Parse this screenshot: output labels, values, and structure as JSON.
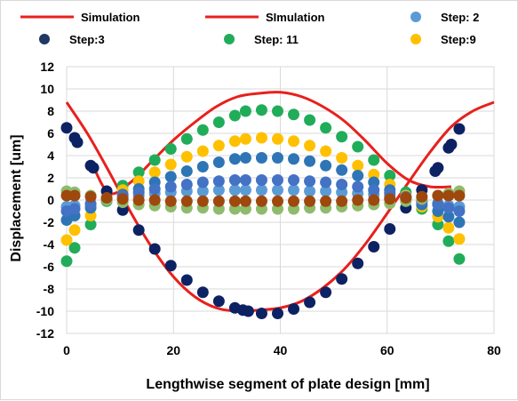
{
  "chart_data": {
    "type": "scatter",
    "title": "",
    "xlabel": "Lengthwise segment of plate design [mm]",
    "ylabel": "Displacement [um]",
    "xlim": [
      0,
      80
    ],
    "ylim": [
      -12,
      12
    ],
    "xticks": [
      "0",
      "20",
      "40",
      "60",
      "80"
    ],
    "yticks": [
      "-12",
      "-10",
      "-8",
      "-6",
      "-4",
      "-2",
      "0",
      "2",
      "4",
      "6",
      "8",
      "10",
      "12"
    ],
    "grid": true,
    "legend_position": "top",
    "legend": [
      {
        "label": "Simulation",
        "kind": "line",
        "color": "#e8201c"
      },
      {
        "label": "SImulation",
        "kind": "line",
        "color": "#e8201c"
      },
      {
        "label": "Step: 2",
        "kind": "marker",
        "color": "#5b9bd5"
      },
      {
        "label": "Step:3",
        "kind": "marker",
        "color": "#1f3864"
      },
      {
        "label": "Step: 11",
        "kind": "marker",
        "color": "#21ac5a"
      },
      {
        "label": "Step:9",
        "kind": "marker",
        "color": "#ffc000"
      }
    ],
    "series": [
      {
        "name": "Simulation",
        "kind": "line",
        "color": "#e8201c",
        "x": [
          0,
          4,
          8,
          12,
          16,
          20,
          24,
          28,
          32,
          36,
          40,
          44,
          48,
          52,
          56,
          60,
          64,
          68,
          72,
          76,
          80
        ],
        "y": [
          8.8,
          5.9,
          2.5,
          -1.1,
          -4.3,
          -6.9,
          -8.7,
          -9.7,
          -10.0,
          -9.9,
          -9.7,
          -9.1,
          -7.9,
          -6.2,
          -3.9,
          -1.2,
          1.6,
          4.3,
          6.6,
          8.0,
          8.8
        ]
      },
      {
        "name": "SImulation",
        "kind": "line",
        "color": "#e8201c",
        "x": [
          5,
          8,
          12,
          16,
          20,
          24,
          28,
          32,
          36,
          40,
          44,
          48,
          52,
          56,
          60,
          64,
          68,
          72
        ],
        "y": [
          3.0,
          0.6,
          1.6,
          3.5,
          5.4,
          7.0,
          8.4,
          9.3,
          9.6,
          9.7,
          9.3,
          8.4,
          7.1,
          5.3,
          3.3,
          1.8,
          1.2,
          1.2
        ]
      },
      {
        "name": "Step: 2",
        "kind": "marker",
        "color": "#5b9bd5",
        "x": [
          0,
          1.5,
          4.5,
          7.5,
          10.5,
          13.5,
          16.5,
          19.5,
          22.5,
          25.5,
          28.5,
          31.5,
          33.5,
          36.5,
          39.5,
          42.5,
          45.5,
          48.5,
          51.5,
          54.5,
          57.5,
          60.5,
          63.5,
          66.5,
          69.5,
          71.5,
          73.5
        ],
        "y": [
          -0.6,
          -0.5,
          -0.3,
          0.0,
          0.2,
          0.4,
          0.6,
          0.7,
          0.8,
          0.8,
          0.9,
          0.9,
          0.9,
          0.9,
          0.9,
          0.9,
          0.8,
          0.8,
          0.7,
          0.6,
          0.5,
          0.3,
          0.1,
          -0.1,
          -0.3,
          -0.5,
          -0.6
        ]
      },
      {
        "name": "Step:3",
        "kind": "marker",
        "color": "#0d2263",
        "x": [
          0,
          1.5,
          2,
          4.5,
          5,
          7.5,
          10.5,
          13.5,
          16.5,
          19.5,
          22.5,
          25.5,
          28.5,
          31.5,
          33,
          34,
          36.5,
          39.5,
          42.5,
          45.5,
          48.5,
          51.5,
          54.5,
          57.5,
          60.5,
          63.5,
          66.5,
          69,
          69.5,
          71.5,
          72,
          73.5
        ],
        "y": [
          6.5,
          5.6,
          5.2,
          3.1,
          2.9,
          0.8,
          -0.9,
          -2.7,
          -4.4,
          -5.9,
          -7.2,
          -8.3,
          -9.1,
          -9.7,
          -9.9,
          -10.0,
          -10.2,
          -10.2,
          -9.8,
          -9.2,
          -8.3,
          -7.1,
          -5.7,
          -4.2,
          -2.6,
          -0.7,
          0.9,
          2.6,
          2.9,
          4.7,
          5.0,
          6.4
        ]
      },
      {
        "name": "Step: 11",
        "kind": "marker",
        "color": "#21ac5a",
        "x": [
          0,
          1.5,
          4.5,
          7.5,
          10.5,
          13.5,
          16.5,
          19.5,
          22.5,
          25.5,
          28.5,
          31.5,
          33.5,
          36.5,
          39.5,
          42.5,
          45.5,
          48.5,
          51.5,
          54.5,
          57.5,
          60.5,
          63.5,
          66.5,
          69.5,
          71.5,
          73.5
        ],
        "y": [
          -5.5,
          -4.3,
          -2.2,
          -0.1,
          1.3,
          2.5,
          3.6,
          4.6,
          5.5,
          6.3,
          7.0,
          7.6,
          8.0,
          8.1,
          8.0,
          7.7,
          7.2,
          6.5,
          5.7,
          4.8,
          3.6,
          2.2,
          0.7,
          -0.8,
          -2.2,
          -3.7,
          -5.3
        ]
      },
      {
        "name": "Step:9",
        "kind": "marker",
        "color": "#ffc000",
        "x": [
          0,
          1.5,
          4.5,
          7.5,
          10.5,
          13.5,
          16.5,
          19.5,
          22.5,
          25.5,
          28.5,
          31.5,
          33.5,
          36.5,
          39.5,
          42.5,
          45.5,
          48.5,
          51.5,
          54.5,
          57.5,
          60.5,
          63.5,
          66.5,
          69.5,
          71.5,
          73.5
        ],
        "y": [
          -3.6,
          -2.7,
          -1.4,
          0.0,
          0.9,
          1.7,
          2.5,
          3.2,
          3.9,
          4.4,
          4.9,
          5.3,
          5.5,
          5.6,
          5.5,
          5.3,
          4.9,
          4.4,
          3.8,
          3.1,
          2.3,
          1.4,
          0.4,
          -0.6,
          -1.5,
          -2.5,
          -3.5
        ]
      },
      {
        "name": "",
        "kind": "marker",
        "color": "#2e75b6",
        "x": [
          0,
          1.5,
          4.5,
          7.5,
          10.5,
          13.5,
          16.5,
          19.5,
          22.5,
          25.5,
          28.5,
          31.5,
          33.5,
          36.5,
          39.5,
          42.5,
          45.5,
          48.5,
          51.5,
          54.5,
          57.5,
          60.5,
          63.5,
          66.5,
          69.5,
          71.5,
          73.5
        ],
        "y": [
          -1.8,
          -1.4,
          -0.7,
          0.0,
          0.5,
          1.0,
          1.6,
          2.1,
          2.6,
          3.0,
          3.4,
          3.7,
          3.8,
          3.8,
          3.8,
          3.7,
          3.5,
          3.1,
          2.7,
          2.2,
          1.6,
          0.9,
          0.2,
          -0.4,
          -1.0,
          -1.5,
          -2.0
        ]
      },
      {
        "name": "",
        "kind": "marker",
        "color": "#4472c4",
        "x": [
          0,
          1.5,
          4.5,
          7.5,
          10.5,
          13.5,
          16.5,
          19.5,
          22.5,
          25.5,
          28.5,
          31.5,
          33.5,
          36.5,
          39.5,
          42.5,
          45.5,
          48.5,
          51.5,
          54.5,
          57.5,
          60.5,
          63.5,
          66.5,
          69.5,
          71.5,
          73.5
        ],
        "y": [
          -1.0,
          -0.8,
          -0.4,
          0.1,
          0.4,
          0.7,
          1.0,
          1.2,
          1.4,
          1.6,
          1.7,
          1.8,
          1.8,
          1.8,
          1.8,
          1.8,
          1.7,
          1.6,
          1.4,
          1.2,
          0.9,
          0.6,
          0.3,
          -0.1,
          -0.4,
          -0.7,
          -1.0
        ]
      },
      {
        "name": "",
        "kind": "marker",
        "color": "#8fbb6c",
        "x": [
          0,
          1.5,
          4.5,
          7.5,
          10.5,
          13.5,
          16.5,
          19.5,
          22.5,
          25.5,
          28.5,
          31.5,
          33.5,
          36.5,
          39.5,
          42.5,
          45.5,
          48.5,
          51.5,
          54.5,
          57.5,
          60.5,
          63.5,
          66.5,
          69.5,
          71.5,
          73.5
        ],
        "y": [
          0.8,
          0.7,
          0.4,
          0.0,
          -0.2,
          -0.4,
          -0.5,
          -0.6,
          -0.7,
          -0.7,
          -0.8,
          -0.8,
          -0.8,
          -0.8,
          -0.8,
          -0.8,
          -0.7,
          -0.7,
          -0.6,
          -0.5,
          -0.4,
          -0.3,
          -0.1,
          0.1,
          0.4,
          0.6,
          0.8
        ]
      },
      {
        "name": "",
        "kind": "marker",
        "color": "#9e480e",
        "x": [
          0,
          1.5,
          4.5,
          7.5,
          10.5,
          13.5,
          16.5,
          19.5,
          22.5,
          25.5,
          28.5,
          31.5,
          33.5,
          36.5,
          39.5,
          42.5,
          45.5,
          48.5,
          51.5,
          54.5,
          57.5,
          60.5,
          63.5,
          66.5,
          69.5,
          71.5,
          73.5
        ],
        "y": [
          0.4,
          0.4,
          0.3,
          0.2,
          0.1,
          0.0,
          0.0,
          -0.1,
          -0.1,
          -0.1,
          -0.1,
          -0.1,
          -0.1,
          -0.1,
          -0.1,
          -0.1,
          -0.1,
          -0.1,
          -0.1,
          0.0,
          0.0,
          0.1,
          0.2,
          0.3,
          0.4,
          0.4,
          0.4
        ]
      }
    ]
  }
}
